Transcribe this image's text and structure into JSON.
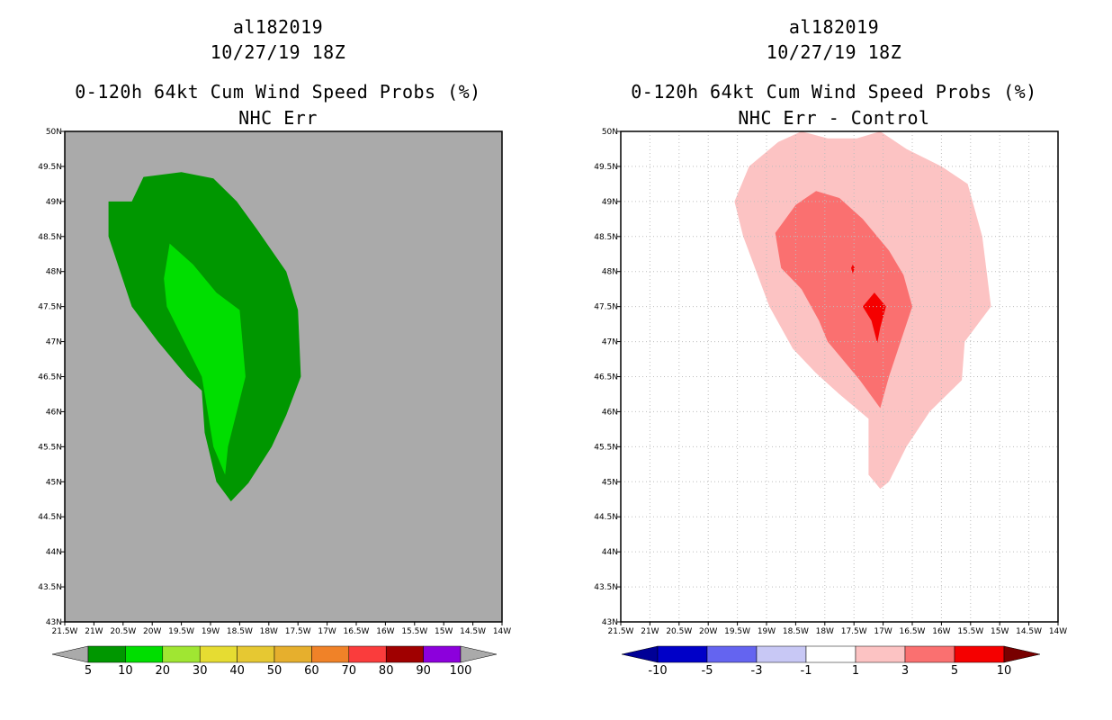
{
  "colors": {
    "frame": "#000000",
    "left_background": "#aaaaaa",
    "grid": "#bdbdbd"
  },
  "chart_data": [
    {
      "type": "heatmap",
      "title": "al182019",
      "subtitle": "10/27/19 18Z",
      "heading": "0-120h 64kt Cum Wind Speed Probs (%)",
      "subheading": "NHC Err",
      "xlim": [
        -21.5,
        -14
      ],
      "ylim": [
        43,
        50
      ],
      "x_ticks": [
        -21.5,
        -21,
        -20.5,
        -20,
        -19.5,
        -19,
        -18.5,
        -18,
        -17.5,
        -17,
        -16.5,
        -16,
        -15.5,
        -15,
        -14.5,
        -14
      ],
      "x_tick_labels": [
        "21.5W",
        "21W",
        "20.5W",
        "20W",
        "19.5W",
        "19W",
        "18.5W",
        "18W",
        "17.5W",
        "17W",
        "16.5W",
        "16W",
        "15.5W",
        "15W",
        "14.5W",
        "14W"
      ],
      "y_ticks": [
        43,
        43.5,
        44,
        44.5,
        45,
        45.5,
        46,
        46.5,
        47,
        47.5,
        48,
        48.5,
        49,
        49.5,
        50
      ],
      "y_tick_labels": [
        "43N",
        "43.5N",
        "44N",
        "44.5N",
        "45N",
        "45.5N",
        "46N",
        "46.5N",
        "47N",
        "47.5N",
        "48N",
        "48.5N",
        "49N",
        "49.5N",
        "50N"
      ],
      "grid": false,
      "contours": [
        {
          "level": "5-10",
          "color": "#009700",
          "points": [
            [
              -20.35,
              49.0
            ],
            [
              -20.15,
              49.35
            ],
            [
              -19.5,
              49.42
            ],
            [
              -18.95,
              49.33
            ],
            [
              -18.55,
              49.0
            ],
            [
              -18.2,
              48.6
            ],
            [
              -17.7,
              48.0
            ],
            [
              -17.5,
              47.45
            ],
            [
              -17.45,
              46.5
            ],
            [
              -17.7,
              45.95
            ],
            [
              -17.95,
              45.5
            ],
            [
              -18.35,
              44.98
            ],
            [
              -18.65,
              44.72
            ],
            [
              -18.9,
              45.0
            ],
            [
              -19.1,
              45.7
            ],
            [
              -19.15,
              46.3
            ],
            [
              -19.4,
              46.5
            ],
            [
              -19.9,
              47.0
            ],
            [
              -20.35,
              47.5
            ],
            [
              -20.75,
              48.5
            ],
            [
              -20.75,
              49.0
            ]
          ]
        },
        {
          "level": "10-20",
          "color": "#00de00",
          "points": [
            [
              -19.7,
              48.4
            ],
            [
              -19.3,
              48.1
            ],
            [
              -18.9,
              47.7
            ],
            [
              -18.5,
              47.45
            ],
            [
              -18.4,
              46.5
            ],
            [
              -18.55,
              46.0
            ],
            [
              -18.7,
              45.5
            ],
            [
              -18.75,
              45.1
            ],
            [
              -18.95,
              45.5
            ],
            [
              -19.05,
              46.0
            ],
            [
              -19.15,
              46.5
            ],
            [
              -19.45,
              47.0
            ],
            [
              -19.75,
              47.5
            ],
            [
              -19.8,
              47.9
            ],
            [
              -19.7,
              48.4
            ]
          ]
        }
      ],
      "colorbar": {
        "labels": [
          "5",
          "10",
          "20",
          "30",
          "40",
          "50",
          "60",
          "70",
          "80",
          "90",
          "100"
        ],
        "colors": [
          "#009700",
          "#00de00",
          "#a0e632",
          "#e6dc32",
          "#e6c832",
          "#e6af2d",
          "#f08228",
          "#fa3c3c",
          "#a00000",
          "#8c00dc"
        ],
        "under_color": "#aaaaaa",
        "over_color": "#aaaaaa"
      }
    },
    {
      "type": "heatmap",
      "title": "al182019",
      "subtitle": "10/27/19 18Z",
      "heading": "0-120h 64kt Cum Wind Speed Probs (%)",
      "subheading": "NHC Err - Control",
      "xlim": [
        -21.5,
        -14
      ],
      "ylim": [
        43,
        50
      ],
      "x_ticks": [
        -21.5,
        -21,
        -20.5,
        -20,
        -19.5,
        -19,
        -18.5,
        -18,
        -17.5,
        -17,
        -16.5,
        -16,
        -15.5,
        -15,
        -14.5,
        -14
      ],
      "x_tick_labels": [
        "21.5W",
        "21W",
        "20.5W",
        "20W",
        "19.5W",
        "19W",
        "18.5W",
        "18W",
        "17.5W",
        "17W",
        "16.5W",
        "16W",
        "15.5W",
        "15W",
        "14.5W",
        "14W"
      ],
      "y_ticks": [
        43,
        43.5,
        44,
        44.5,
        45,
        45.5,
        46,
        46.5,
        47,
        47.5,
        48,
        48.5,
        49,
        49.5,
        50
      ],
      "y_tick_labels": [
        "43N",
        "43.5N",
        "44N",
        "44.5N",
        "45N",
        "45.5N",
        "46N",
        "46.5N",
        "47N",
        "47.5N",
        "48N",
        "48.5N",
        "49N",
        "49.5N",
        "50N"
      ],
      "grid": true,
      "contours": [
        {
          "level": "1-3",
          "color": "#fcc3c3",
          "points": [
            [
              -19.55,
              49.0
            ],
            [
              -19.3,
              49.5
            ],
            [
              -18.8,
              49.85
            ],
            [
              -18.4,
              50.0
            ],
            [
              -17.95,
              49.9
            ],
            [
              -17.45,
              49.9
            ],
            [
              -17.05,
              50.0
            ],
            [
              -16.6,
              49.75
            ],
            [
              -16.0,
              49.5
            ],
            [
              -15.55,
              49.25
            ],
            [
              -15.3,
              48.5
            ],
            [
              -15.15,
              47.5
            ],
            [
              -15.6,
              47.0
            ],
            [
              -15.65,
              46.45
            ],
            [
              -16.2,
              46.0
            ],
            [
              -16.6,
              45.5
            ],
            [
              -16.9,
              45.0
            ],
            [
              -17.05,
              44.9
            ],
            [
              -17.25,
              45.1
            ],
            [
              -17.25,
              45.9
            ],
            [
              -17.75,
              46.25
            ],
            [
              -18.15,
              46.55
            ],
            [
              -18.55,
              46.9
            ],
            [
              -18.95,
              47.5
            ],
            [
              -19.4,
              48.5
            ],
            [
              -19.55,
              49.0
            ]
          ]
        },
        {
          "level": "3-5",
          "color": "#fa7070",
          "points": [
            [
              -18.85,
              48.55
            ],
            [
              -18.5,
              48.95
            ],
            [
              -18.15,
              49.15
            ],
            [
              -17.75,
              49.05
            ],
            [
              -17.35,
              48.75
            ],
            [
              -16.9,
              48.3
            ],
            [
              -16.65,
              47.95
            ],
            [
              -16.5,
              47.5
            ],
            [
              -16.7,
              47.0
            ],
            [
              -16.9,
              46.5
            ],
            [
              -17.05,
              46.05
            ],
            [
              -17.4,
              46.45
            ],
            [
              -17.75,
              46.8
            ],
            [
              -17.95,
              47.0
            ],
            [
              -18.1,
              47.3
            ],
            [
              -18.4,
              47.75
            ],
            [
              -18.75,
              48.05
            ],
            [
              -18.85,
              48.55
            ]
          ]
        },
        {
          "level": "5-10",
          "color": "#f50000",
          "points": [
            [
              -17.35,
              47.5
            ],
            [
              -17.15,
              47.7
            ],
            [
              -16.95,
              47.5
            ],
            [
              -17.05,
              47.2
            ],
            [
              -17.1,
              46.98
            ],
            [
              -17.2,
              47.3
            ],
            [
              -17.35,
              47.5
            ]
          ]
        },
        {
          "level": "5-10",
          "color": "#f50000",
          "points": [
            [
              -17.55,
              48.05
            ],
            [
              -17.52,
              48.1
            ],
            [
              -17.49,
              48.05
            ],
            [
              -17.52,
              47.97
            ],
            [
              -17.55,
              48.05
            ]
          ]
        }
      ],
      "colorbar": {
        "labels": [
          "-10",
          "-5",
          "-3",
          "-1",
          "1",
          "3",
          "5",
          "10"
        ],
        "colors": [
          "#0000c8",
          "#6464f0",
          "#c8c8f5",
          "#ffffff",
          "#fcc3c3",
          "#fa7070",
          "#f50000"
        ],
        "under_color": "#000096",
        "over_color": "#780000"
      }
    }
  ]
}
